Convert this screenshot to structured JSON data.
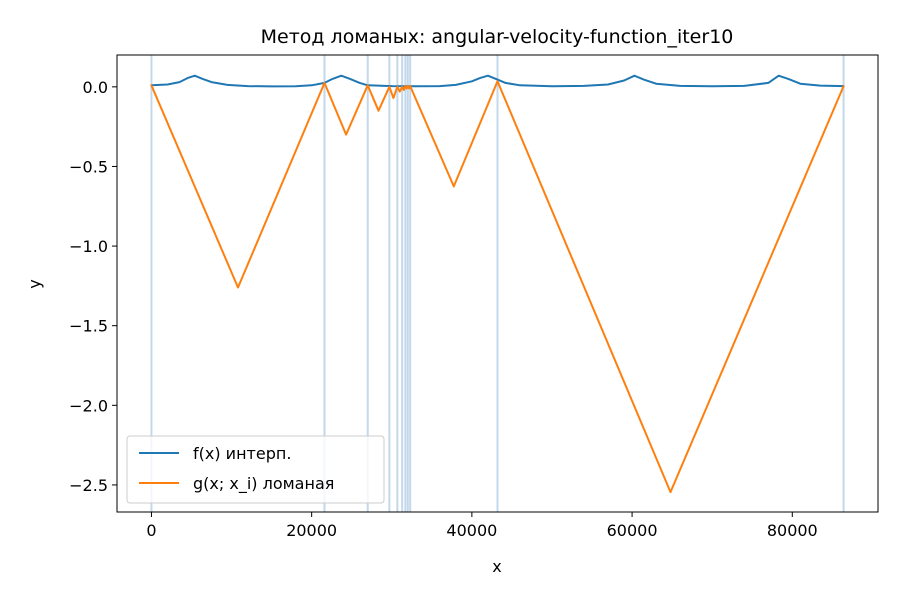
{
  "chart_data": {
    "type": "line",
    "title": "Метод ломаных: angular-velocity-function_iter10",
    "xlabel": "x",
    "ylabel": "y",
    "xlim": [
      -4300,
      90700
    ],
    "ylim": [
      -2.67,
      0.2
    ],
    "xticks": [
      0,
      20000,
      40000,
      60000,
      80000
    ],
    "xtick_labels": [
      "0",
      "20000",
      "40000",
      "60000",
      "80000"
    ],
    "yticks": [
      0.0,
      -0.5,
      -1.0,
      -1.5,
      -2.0,
      -2.5
    ],
    "ytick_labels": [
      "0.0",
      "−0.5",
      "−1.0",
      "−1.5",
      "−2.0",
      "−2.5"
    ],
    "grid": false,
    "legend_position": "lower-left",
    "vertical_lines": [
      0,
      21600,
      27000,
      29700,
      30700,
      31300,
      31700,
      32000,
      32300,
      43200,
      86400
    ],
    "vertical_line_color": "#a9c8e3",
    "series": [
      {
        "name": "f(x) интерп.",
        "color": "#1f77b4",
        "x": [
          0,
          2000,
          3500,
          4500,
          5400,
          6400,
          7500,
          9500,
          12000,
          15000,
          18000,
          20000,
          21600,
          22600,
          23700,
          24800,
          26000,
          27000,
          30000,
          33000,
          36000,
          38000,
          40000,
          41000,
          42000,
          43000,
          44200,
          46000,
          50000,
          54000,
          57000,
          59000,
          60300,
          61500,
          63000,
          66000,
          70000,
          74000,
          77000,
          78300,
          79500,
          81000,
          83500,
          86400
        ],
        "y": [
          0.01,
          0.015,
          0.03,
          0.055,
          0.07,
          0.05,
          0.03,
          0.012,
          0.005,
          0.003,
          0.004,
          0.01,
          0.025,
          0.05,
          0.07,
          0.05,
          0.025,
          0.01,
          0.005,
          0.004,
          0.005,
          0.012,
          0.035,
          0.055,
          0.07,
          0.05,
          0.025,
          0.01,
          0.004,
          0.006,
          0.015,
          0.04,
          0.07,
          0.045,
          0.02,
          0.006,
          0.004,
          0.006,
          0.025,
          0.07,
          0.05,
          0.02,
          0.008,
          0.005
        ]
      },
      {
        "name": "g(x; x_i) ломаная",
        "color": "#ff7f0e",
        "x": [
          0,
          10800,
          21600,
          24300,
          27000,
          28350,
          29700,
          30200,
          30700,
          31000,
          31300,
          31500,
          31700,
          31850,
          32000,
          32150,
          32300,
          37750,
          43200,
          64800,
          86400
        ],
        "y": [
          0.01,
          -1.26,
          0.025,
          -0.3,
          0.01,
          -0.15,
          0.0,
          -0.07,
          0.0,
          -0.03,
          0.0,
          -0.02,
          0.005,
          -0.01,
          0.005,
          -0.01,
          0.005,
          -0.625,
          0.035,
          -2.545,
          0.005
        ]
      }
    ]
  }
}
